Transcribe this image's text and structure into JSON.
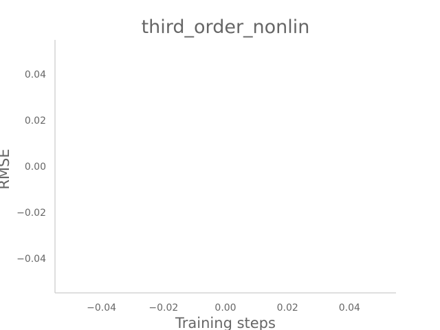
{
  "chart_data": {
    "type": "line",
    "title": "third_order_nonlin",
    "xlabel": "Training steps",
    "ylabel": "RMSE",
    "xlim": [
      -0.055,
      0.055
    ],
    "ylim": [
      -0.055,
      0.055
    ],
    "xticks": [
      -0.04,
      -0.02,
      0.0,
      0.02,
      0.04
    ],
    "yticks": [
      -0.04,
      -0.02,
      0.0,
      0.02,
      0.04
    ],
    "xtick_labels": [
      "−0.04",
      "−0.02",
      "0.00",
      "0.02",
      "0.04"
    ],
    "ytick_labels": [
      "−0.04",
      "−0.02",
      "0.00",
      "0.02",
      "0.04"
    ],
    "series": [],
    "grid": false,
    "colors": {
      "text": "#666666",
      "spine": "#cccccc",
      "background": "#ffffff"
    }
  }
}
